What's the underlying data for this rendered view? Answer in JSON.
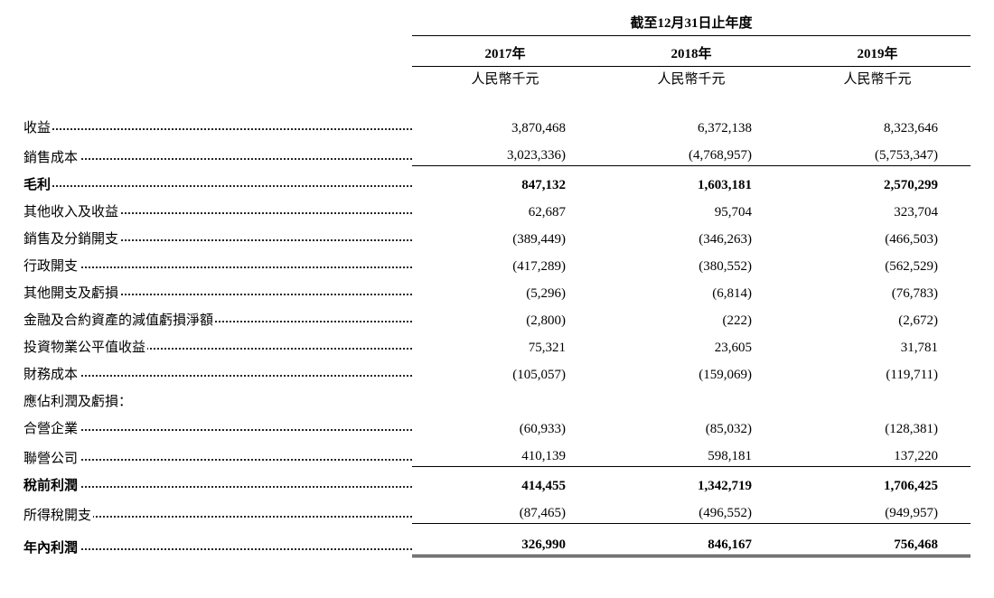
{
  "period_title": "截至12月31日止年度",
  "years": [
    "2017年",
    "2018年",
    "2019年"
  ],
  "unit": "人民幣千元",
  "rows": [
    {
      "label": "收益",
      "values": [
        "3,870,468",
        "6,372,138",
        "8,323,646"
      ],
      "underline": false,
      "bold": false,
      "top": false
    },
    {
      "label": "銷售成本",
      "values": [
        "3,023,336)",
        "(4,768,957)",
        "(5,753,347)"
      ],
      "underline": true,
      "bold": false,
      "top": false
    },
    {
      "label": "毛利",
      "values": [
        "847,132",
        "1,603,181",
        "2,570,299"
      ],
      "underline": false,
      "bold": true,
      "top": false
    },
    {
      "label": "其他收入及收益",
      "values": [
        "62,687",
        "95,704",
        "323,704"
      ],
      "underline": false,
      "bold": false,
      "top": false
    },
    {
      "label": "銷售及分銷開支",
      "values": [
        "(389,449)",
        "(346,263)",
        "(466,503)"
      ],
      "underline": false,
      "bold": false,
      "top": false
    },
    {
      "label": "行政開支",
      "values": [
        "(417,289)",
        "(380,552)",
        "(562,529)"
      ],
      "underline": false,
      "bold": false,
      "top": false
    },
    {
      "label": "其他開支及虧損",
      "values": [
        "(5,296)",
        "(6,814)",
        "(76,783)"
      ],
      "underline": false,
      "bold": false,
      "top": false
    },
    {
      "label": "金融及合約資產的減值虧損淨額",
      "values": [
        "(2,800)",
        "(222)",
        "(2,672)"
      ],
      "underline": false,
      "bold": false,
      "top": false
    },
    {
      "label": "投資物業公平值收益",
      "values": [
        "75,321",
        "23,605",
        "31,781"
      ],
      "underline": false,
      "bold": false,
      "top": false
    },
    {
      "label": "財務成本",
      "values": [
        "(105,057)",
        "(159,069)",
        "(119,711)"
      ],
      "underline": false,
      "bold": false,
      "top": false
    },
    {
      "label": "應佔利潤及虧損：",
      "values": [
        "",
        "",
        ""
      ],
      "underline": false,
      "bold": false,
      "top": false,
      "nodots": true
    },
    {
      "label": "合營企業",
      "values": [
        "(60,933)",
        "(85,032)",
        "(128,381)"
      ],
      "underline": false,
      "bold": false,
      "top": false
    },
    {
      "label": "聯營公司",
      "values": [
        "410,139",
        "598,181",
        "137,220"
      ],
      "underline": true,
      "bold": false,
      "top": false
    },
    {
      "label": "稅前利潤",
      "values": [
        "414,455",
        "1,342,719",
        "1,706,425"
      ],
      "underline": false,
      "bold": true,
      "top": false
    },
    {
      "label": "所得稅開支",
      "values": [
        "(87,465)",
        "(496,552)",
        "(949,957)"
      ],
      "underline": true,
      "bold": false,
      "top": false
    },
    {
      "label": "年內利潤",
      "values": [
        "326,990",
        "846,167",
        "756,468"
      ],
      "underline": false,
      "bold": true,
      "top": false,
      "double": true
    }
  ]
}
